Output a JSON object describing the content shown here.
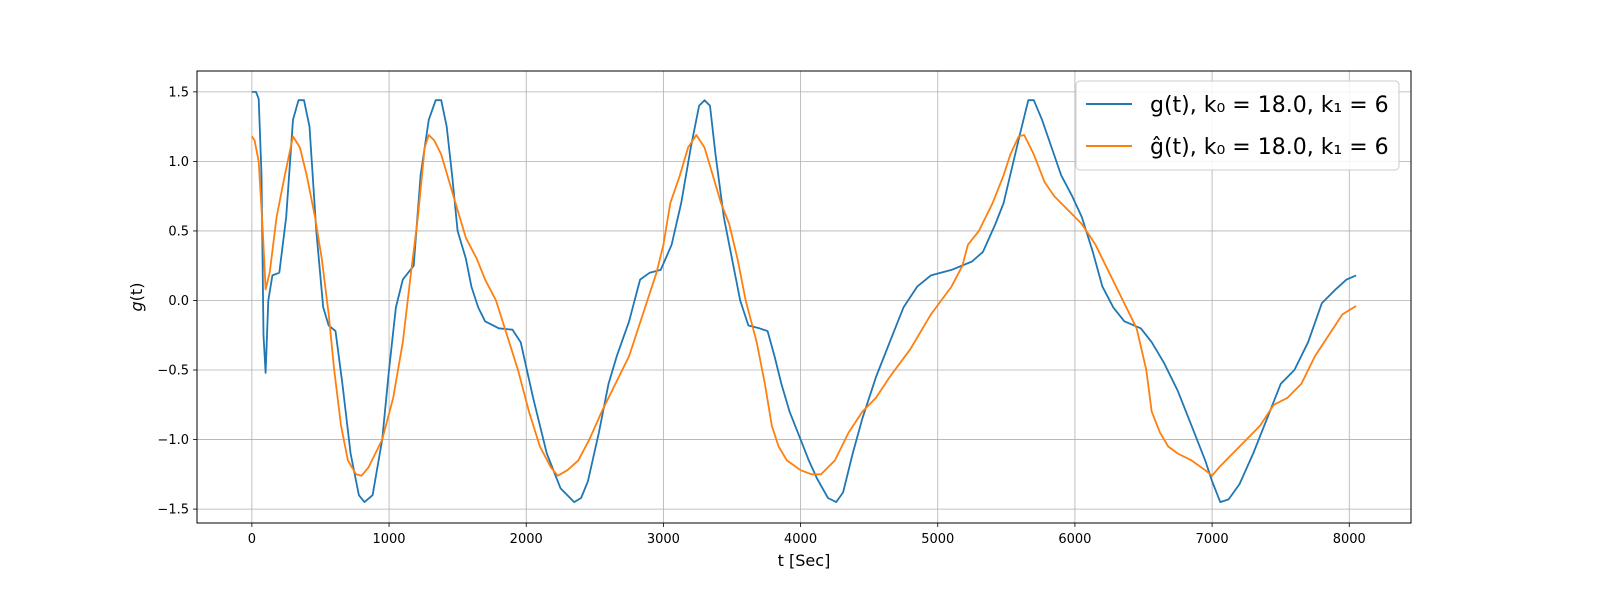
{
  "chart_data": {
    "type": "line",
    "title": "",
    "xlabel": "t [Sec]",
    "ylabel": "g(t)",
    "xlim": [
      -400,
      8450
    ],
    "ylim": [
      -1.6,
      1.65
    ],
    "xticks": [
      0,
      1000,
      2000,
      3000,
      4000,
      5000,
      6000,
      7000,
      8000
    ],
    "yticks": [
      -1.5,
      -1.0,
      -0.5,
      0.0,
      0.5,
      1.0,
      1.5
    ],
    "xtick_labels": [
      "0",
      "1000",
      "2000",
      "3000",
      "4000",
      "5000",
      "6000",
      "7000",
      "8000"
    ],
    "ytick_labels": [
      "−1.5",
      "−1.0",
      "−0.5",
      "0.0",
      "0.5",
      "1.0",
      "1.5"
    ],
    "grid": true,
    "legend_position": "top-right",
    "series": [
      {
        "name": "g(t), k₀ = 18.0, k₁ = 6",
        "color": "#1f77b4",
        "points": [
          [
            0,
            1.5
          ],
          [
            30,
            1.5
          ],
          [
            50,
            1.45
          ],
          [
            70,
            0.9
          ],
          [
            85,
            -0.25
          ],
          [
            100,
            -0.52
          ],
          [
            120,
            0.0
          ],
          [
            150,
            0.18
          ],
          [
            200,
            0.2
          ],
          [
            250,
            0.6
          ],
          [
            300,
            1.3
          ],
          [
            340,
            1.44
          ],
          [
            380,
            1.44
          ],
          [
            420,
            1.25
          ],
          [
            470,
            0.5
          ],
          [
            520,
            -0.05
          ],
          [
            560,
            -0.18
          ],
          [
            610,
            -0.22
          ],
          [
            660,
            -0.6
          ],
          [
            720,
            -1.1
          ],
          [
            780,
            -1.4
          ],
          [
            820,
            -1.45
          ],
          [
            880,
            -1.4
          ],
          [
            950,
            -1.0
          ],
          [
            1000,
            -0.5
          ],
          [
            1050,
            -0.05
          ],
          [
            1100,
            0.15
          ],
          [
            1180,
            0.25
          ],
          [
            1230,
            0.9
          ],
          [
            1290,
            1.3
          ],
          [
            1340,
            1.44
          ],
          [
            1380,
            1.44
          ],
          [
            1420,
            1.25
          ],
          [
            1460,
            0.9
          ],
          [
            1500,
            0.5
          ],
          [
            1560,
            0.3
          ],
          [
            1600,
            0.1
          ],
          [
            1650,
            -0.05
          ],
          [
            1700,
            -0.15
          ],
          [
            1800,
            -0.2
          ],
          [
            1900,
            -0.21
          ],
          [
            1960,
            -0.3
          ],
          [
            2050,
            -0.7
          ],
          [
            2150,
            -1.1
          ],
          [
            2250,
            -1.35
          ],
          [
            2350,
            -1.45
          ],
          [
            2400,
            -1.42
          ],
          [
            2450,
            -1.3
          ],
          [
            2530,
            -0.95
          ],
          [
            2600,
            -0.6
          ],
          [
            2660,
            -0.4
          ],
          [
            2750,
            -0.15
          ],
          [
            2830,
            0.15
          ],
          [
            2900,
            0.2
          ],
          [
            2980,
            0.22
          ],
          [
            3060,
            0.4
          ],
          [
            3130,
            0.7
          ],
          [
            3200,
            1.1
          ],
          [
            3260,
            1.4
          ],
          [
            3300,
            1.44
          ],
          [
            3340,
            1.4
          ],
          [
            3380,
            1.05
          ],
          [
            3440,
            0.6
          ],
          [
            3500,
            0.3
          ],
          [
            3560,
            0.0
          ],
          [
            3620,
            -0.18
          ],
          [
            3700,
            -0.2
          ],
          [
            3760,
            -0.22
          ],
          [
            3810,
            -0.4
          ],
          [
            3860,
            -0.6
          ],
          [
            3920,
            -0.8
          ],
          [
            4000,
            -1.0
          ],
          [
            4060,
            -1.15
          ],
          [
            4120,
            -1.28
          ],
          [
            4200,
            -1.42
          ],
          [
            4260,
            -1.45
          ],
          [
            4310,
            -1.38
          ],
          [
            4380,
            -1.1
          ],
          [
            4450,
            -0.85
          ],
          [
            4550,
            -0.55
          ],
          [
            4650,
            -0.3
          ],
          [
            4750,
            -0.05
          ],
          [
            4850,
            0.1
          ],
          [
            4950,
            0.18
          ],
          [
            5100,
            0.22
          ],
          [
            5250,
            0.28
          ],
          [
            5330,
            0.35
          ],
          [
            5420,
            0.55
          ],
          [
            5480,
            0.7
          ],
          [
            5540,
            0.95
          ],
          [
            5600,
            1.2
          ],
          [
            5660,
            1.44
          ],
          [
            5700,
            1.44
          ],
          [
            5760,
            1.3
          ],
          [
            5830,
            1.1
          ],
          [
            5900,
            0.9
          ],
          [
            5980,
            0.75
          ],
          [
            6050,
            0.6
          ],
          [
            6130,
            0.35
          ],
          [
            6200,
            0.1
          ],
          [
            6280,
            -0.05
          ],
          [
            6360,
            -0.15
          ],
          [
            6480,
            -0.2
          ],
          [
            6560,
            -0.3
          ],
          [
            6650,
            -0.45
          ],
          [
            6750,
            -0.65
          ],
          [
            6850,
            -0.9
          ],
          [
            6950,
            -1.15
          ],
          [
            7000,
            -1.3
          ],
          [
            7060,
            -1.45
          ],
          [
            7120,
            -1.43
          ],
          [
            7200,
            -1.32
          ],
          [
            7300,
            -1.1
          ],
          [
            7400,
            -0.85
          ],
          [
            7500,
            -0.6
          ],
          [
            7600,
            -0.5
          ],
          [
            7700,
            -0.3
          ],
          [
            7800,
            -0.02
          ],
          [
            7900,
            0.08
          ],
          [
            7980,
            0.15
          ],
          [
            8050,
            0.18
          ]
        ]
      },
      {
        "name": "ĝ(t), k₀ = 18.0, k₁ = 6",
        "color": "#ff7f0e",
        "points": [
          [
            0,
            1.18
          ],
          [
            20,
            1.15
          ],
          [
            50,
            1.0
          ],
          [
            80,
            0.5
          ],
          [
            100,
            0.08
          ],
          [
            130,
            0.2
          ],
          [
            180,
            0.6
          ],
          [
            240,
            0.9
          ],
          [
            300,
            1.18
          ],
          [
            350,
            1.1
          ],
          [
            400,
            0.9
          ],
          [
            460,
            0.6
          ],
          [
            510,
            0.3
          ],
          [
            560,
            -0.1
          ],
          [
            600,
            -0.5
          ],
          [
            650,
            -0.9
          ],
          [
            700,
            -1.15
          ],
          [
            760,
            -1.25
          ],
          [
            800,
            -1.26
          ],
          [
            850,
            -1.2
          ],
          [
            950,
            -1.0
          ],
          [
            1030,
            -0.7
          ],
          [
            1100,
            -0.3
          ],
          [
            1160,
            0.2
          ],
          [
            1210,
            0.6
          ],
          [
            1260,
            1.1
          ],
          [
            1290,
            1.19
          ],
          [
            1330,
            1.15
          ],
          [
            1380,
            1.05
          ],
          [
            1440,
            0.85
          ],
          [
            1500,
            0.65
          ],
          [
            1560,
            0.45
          ],
          [
            1640,
            0.3
          ],
          [
            1700,
            0.15
          ],
          [
            1780,
            0.0
          ],
          [
            1860,
            -0.25
          ],
          [
            1940,
            -0.5
          ],
          [
            2020,
            -0.8
          ],
          [
            2100,
            -1.05
          ],
          [
            2180,
            -1.2
          ],
          [
            2230,
            -1.26
          ],
          [
            2300,
            -1.22
          ],
          [
            2380,
            -1.15
          ],
          [
            2460,
            -1.0
          ],
          [
            2550,
            -0.8
          ],
          [
            2650,
            -0.6
          ],
          [
            2750,
            -0.4
          ],
          [
            2850,
            -0.1
          ],
          [
            2950,
            0.2
          ],
          [
            3000,
            0.4
          ],
          [
            3050,
            0.7
          ],
          [
            3120,
            0.9
          ],
          [
            3180,
            1.1
          ],
          [
            3240,
            1.19
          ],
          [
            3300,
            1.1
          ],
          [
            3360,
            0.9
          ],
          [
            3420,
            0.7
          ],
          [
            3480,
            0.55
          ],
          [
            3540,
            0.3
          ],
          [
            3600,
            0.0
          ],
          [
            3680,
            -0.3
          ],
          [
            3740,
            -0.6
          ],
          [
            3790,
            -0.9
          ],
          [
            3840,
            -1.05
          ],
          [
            3900,
            -1.15
          ],
          [
            4000,
            -1.22
          ],
          [
            4080,
            -1.25
          ],
          [
            4150,
            -1.25
          ],
          [
            4250,
            -1.15
          ],
          [
            4350,
            -0.95
          ],
          [
            4450,
            -0.8
          ],
          [
            4550,
            -0.7
          ],
          [
            4650,
            -0.55
          ],
          [
            4800,
            -0.35
          ],
          [
            4950,
            -0.1
          ],
          [
            5100,
            0.1
          ],
          [
            5180,
            0.25
          ],
          [
            5220,
            0.4
          ],
          [
            5300,
            0.5
          ],
          [
            5400,
            0.7
          ],
          [
            5480,
            0.9
          ],
          [
            5530,
            1.05
          ],
          [
            5590,
            1.18
          ],
          [
            5630,
            1.19
          ],
          [
            5700,
            1.05
          ],
          [
            5780,
            0.85
          ],
          [
            5850,
            0.75
          ],
          [
            5950,
            0.65
          ],
          [
            6050,
            0.55
          ],
          [
            6150,
            0.4
          ],
          [
            6250,
            0.2
          ],
          [
            6350,
            0.0
          ],
          [
            6450,
            -0.2
          ],
          [
            6520,
            -0.5
          ],
          [
            6560,
            -0.8
          ],
          [
            6620,
            -0.95
          ],
          [
            6680,
            -1.05
          ],
          [
            6750,
            -1.1
          ],
          [
            6850,
            -1.15
          ],
          [
            6950,
            -1.22
          ],
          [
            7000,
            -1.26
          ],
          [
            7050,
            -1.2
          ],
          [
            7150,
            -1.1
          ],
          [
            7250,
            -1.0
          ],
          [
            7350,
            -0.9
          ],
          [
            7450,
            -0.75
          ],
          [
            7550,
            -0.7
          ],
          [
            7650,
            -0.6
          ],
          [
            7750,
            -0.4
          ],
          [
            7850,
            -0.25
          ],
          [
            7950,
            -0.1
          ],
          [
            8050,
            -0.04
          ]
        ]
      }
    ]
  }
}
